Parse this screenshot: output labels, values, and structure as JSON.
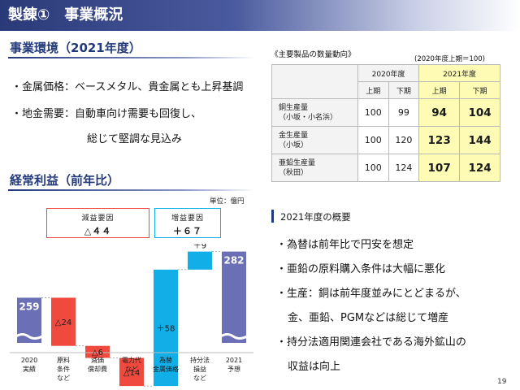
{
  "title": "製錬①　事業概況",
  "env": {
    "heading": "事業環境（2021年度）",
    "lines": [
      "・金属価格：ベースメタル、貴金属とも上昇基調",
      "・地金需要：自動車向け需要も回復し、",
      "総じて堅調な見込み"
    ]
  },
  "profit": {
    "heading": "経常利益（前年比）",
    "unit": "単位：億円",
    "decrease_box": {
      "title": "減益要因",
      "value": "△４４"
    },
    "increase_box": {
      "title": "増益要因",
      "value": "＋６７"
    }
  },
  "chart_data": {
    "type": "waterfall",
    "unit": "億円",
    "steps": [
      {
        "label": [
          "2020",
          "実績"
        ],
        "value": 259,
        "kind": "total",
        "text": "259"
      },
      {
        "label": [
          "原料",
          "条件",
          "など"
        ],
        "value": -24,
        "kind": "decrease",
        "text": "△24"
      },
      {
        "label": [
          "減価",
          "償却費"
        ],
        "value": -6,
        "kind": "decrease",
        "text": "△6"
      },
      {
        "label": [
          "電力代",
          "など"
        ],
        "value": -14,
        "kind": "decrease",
        "text": "△14"
      },
      {
        "label": [
          "為替",
          "金属価格"
        ],
        "value": 58,
        "kind": "increase",
        "text": "＋58"
      },
      {
        "label": [
          "持分法",
          "損益",
          "など"
        ],
        "value": 9,
        "kind": "increase",
        "text": "＋9"
      },
      {
        "label": [
          "2021",
          "予想"
        ],
        "value": 282,
        "kind": "total",
        "text": "282"
      }
    ],
    "colors": {
      "total": "#6b6fb5",
      "decrease": "#f04a3e",
      "increase": "#12aee8"
    }
  },
  "table": {
    "title": "《主要製品の数量動向》",
    "note": "(2020年度上期＝100)",
    "year_headers": [
      "2020年度",
      "2021年度"
    ],
    "half_headers": [
      "上期",
      "下期",
      "上期",
      "下期"
    ],
    "rows": [
      {
        "label": [
          "銅生産量",
          "（小坂・小名浜）"
        ],
        "values": [
          "100",
          "99",
          "94",
          "104"
        ]
      },
      {
        "label": [
          "金生産量",
          "（小坂）"
        ],
        "values": [
          "100",
          "120",
          "123",
          "144"
        ]
      },
      {
        "label": [
          "亜鉛生産量",
          "（秋田）"
        ],
        "values": [
          "100",
          "124",
          "107",
          "124"
        ]
      }
    ]
  },
  "summary": {
    "title": "2021年度の概要",
    "lines": [
      "・為替は前年比で円安を想定",
      "・亜鉛の原料購入条件は大幅に悪化",
      "・生産：銅は前年度並みにとどまるが、",
      "金、亜鉛、PGMなどは総じて増産",
      "・持分法適用関連会社である海外鉱山の",
      "収益は向上"
    ]
  },
  "page_number": "19"
}
